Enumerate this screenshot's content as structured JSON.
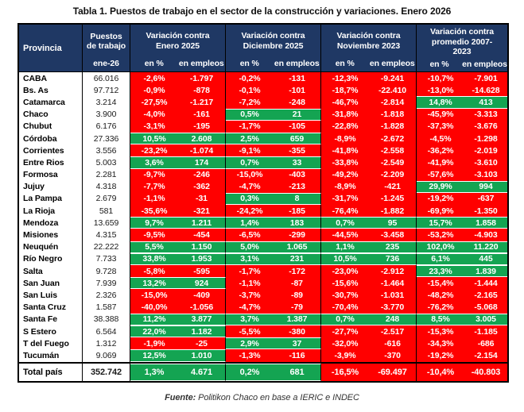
{
  "title": "Tabla 1. Puestos de trabajo en el sector de la construcción y variaciones. Enero 2026",
  "header": {
    "provincia": "Provincia",
    "puestos": "Puestos de trabajo",
    "puestos_sub": "ene-26",
    "groups": [
      {
        "title": "Variación contra Enero 2025",
        "subs": [
          "en %",
          "en empleos"
        ]
      },
      {
        "title": "Variación contra Diciembre 2025",
        "subs": [
          "en %",
          "en empleos"
        ]
      },
      {
        "title": "Variación contra Noviembre 2023",
        "subs": [
          "en %",
          "en empleos"
        ]
      },
      {
        "title": "Variación contra promedio 2007-2023",
        "subs": [
          "en %",
          "en empleos"
        ]
      }
    ]
  },
  "chart_data": {
    "type": "table",
    "title": "Tabla 1. Puestos de trabajo en el sector de la construcción y variaciones. Enero 2026",
    "columns": [
      "Provincia",
      "Puestos de trabajo ene-26",
      "Var. Enero 2025 en %",
      "Var. Enero 2025 en empleos",
      "Var. Diciembre 2025 en %",
      "Var. Diciembre 2025 en empleos",
      "Var. Noviembre 2023 en %",
      "Var. Noviembre 2023 en empleos",
      "Var. promedio 2007-2023 en %",
      "Var. promedio 2007-2023 en empleos"
    ],
    "rows": [
      [
        "CABA",
        "66.016",
        "-2,6%",
        "-1.797",
        "-0,2%",
        "-131",
        "-12,3%",
        "-9.241",
        "-10,7%",
        "-7.901"
      ],
      [
        "Bs. As",
        "97.712",
        "-0,9%",
        "-878",
        "-0,1%",
        "-101",
        "-18,7%",
        "-22.410",
        "-13,0%",
        "-14.628"
      ],
      [
        "Catamarca",
        "3.214",
        "-27,5%",
        "-1.217",
        "-7,2%",
        "-248",
        "-46,7%",
        "-2.814",
        "14,8%",
        "413"
      ],
      [
        "Chaco",
        "3.900",
        "-4,0%",
        "-161",
        "0,5%",
        "21",
        "-31,8%",
        "-1.818",
        "-45,9%",
        "-3.313"
      ],
      [
        "Chubut",
        "6.176",
        "-3,1%",
        "-195",
        "-1,7%",
        "-105",
        "-22,8%",
        "-1.828",
        "-37,3%",
        "-3.676"
      ],
      [
        "Córdoba",
        "27.336",
        "10,5%",
        "2.608",
        "2,5%",
        "659",
        "-8,9%",
        "-2.672",
        "-4,5%",
        "-1.298"
      ],
      [
        "Corrientes",
        "3.556",
        "-23,2%",
        "-1.074",
        "-9,1%",
        "-355",
        "-41,8%",
        "-2.558",
        "-36,2%",
        "-2.019"
      ],
      [
        "Entre Rios",
        "5.003",
        "3,6%",
        "174",
        "0,7%",
        "33",
        "-33,8%",
        "-2.549",
        "-41,9%",
        "-3.610"
      ],
      [
        "Formosa",
        "2.281",
        "-9,7%",
        "-246",
        "-15,0%",
        "-403",
        "-49,2%",
        "-2.209",
        "-57,6%",
        "-3.103"
      ],
      [
        "Jujuy",
        "4.318",
        "-7,7%",
        "-362",
        "-4,7%",
        "-213",
        "-8,9%",
        "-421",
        "29,9%",
        "994"
      ],
      [
        "La Pampa",
        "2.679",
        "-1,1%",
        "-31",
        "0,3%",
        "8",
        "-31,7%",
        "-1.245",
        "-19,2%",
        "-637"
      ],
      [
        "La Rioja",
        "581",
        "-35,6%",
        "-321",
        "-24,2%",
        "-185",
        "-76,4%",
        "-1.882",
        "-69,9%",
        "-1.350"
      ],
      [
        "Mendoza",
        "13.659",
        "9,7%",
        "1.211",
        "1,4%",
        "183",
        "0,7%",
        "95",
        "15,7%",
        "1.858"
      ],
      [
        "Misiones",
        "4.315",
        "-9,5%",
        "-454",
        "-6,5%",
        "-299",
        "-44,5%",
        "-3.458",
        "-53,2%",
        "-4.903"
      ],
      [
        "Neuquén",
        "22.222",
        "5,5%",
        "1.150",
        "5,0%",
        "1.065",
        "1,1%",
        "235",
        "102,0%",
        "11.220"
      ],
      [
        "Río Negro",
        "7.733",
        "33,8%",
        "1.953",
        "3,1%",
        "231",
        "10,5%",
        "736",
        "6,1%",
        "445"
      ],
      [
        "Salta",
        "9.728",
        "-5,8%",
        "-595",
        "-1,7%",
        "-172",
        "-23,0%",
        "-2.912",
        "23,3%",
        "1.839"
      ],
      [
        "San Juan",
        "7.939",
        "13,2%",
        "924",
        "-1,1%",
        "-87",
        "-15,6%",
        "-1.464",
        "-15,4%",
        "-1.444"
      ],
      [
        "San Luis",
        "2.326",
        "-15,0%",
        "-409",
        "-3,7%",
        "-89",
        "-30,7%",
        "-1.031",
        "-48,2%",
        "-2.165"
      ],
      [
        "Santa Cruz",
        "1.587",
        "-40,0%",
        "-1.056",
        "-4,7%",
        "-79",
        "-70,4%",
        "-3.770",
        "-76,2%",
        "-5.068"
      ],
      [
        "Santa Fe",
        "38.388",
        "11,2%",
        "3.877",
        "3,7%",
        "1.387",
        "0,7%",
        "248",
        "8,5%",
        "3.005"
      ],
      [
        "S Estero",
        "6.564",
        "22,0%",
        "1.182",
        "-5,5%",
        "-380",
        "-27,7%",
        "-2.517",
        "-15,3%",
        "-1.185"
      ],
      [
        "T del Fuego",
        "1.312",
        "-1,9%",
        "-25",
        "2,9%",
        "37",
        "-32,0%",
        "-616",
        "-34,3%",
        "-686"
      ],
      [
        "Tucumán",
        "9.069",
        "12,5%",
        "1.010",
        "-1,3%",
        "-116",
        "-3,9%",
        "-370",
        "-19,2%",
        "-2.154"
      ]
    ],
    "total_row": [
      "Total país",
      "352.742",
      "1,3%",
      "4.671",
      "0,2%",
      "681",
      "-16,5%",
      "-69.497",
      "-10,4%",
      "-40.803"
    ],
    "value_color_rule": "negative values red background, non-negative green background, white text"
  },
  "footer": {
    "label": "Fuente:",
    "text": " Politikon Chaco en base a IERIC e INDEC"
  },
  "colors": {
    "header_bg": "#1F3864",
    "negative": "#FF0000",
    "positive": "#14A452",
    "border": "#000000"
  }
}
